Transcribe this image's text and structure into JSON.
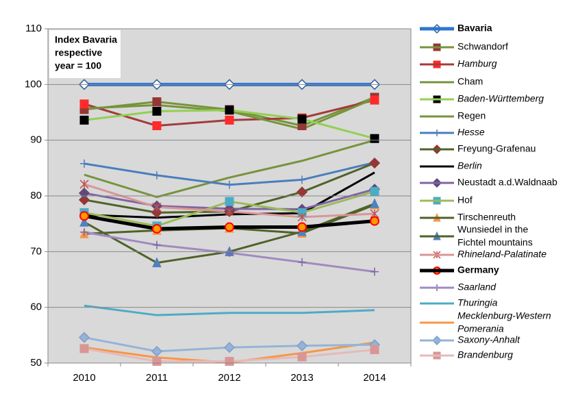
{
  "chart_data": {
    "type": "line",
    "annotation": [
      "Index Bavaria",
      "respective",
      "year = 100"
    ],
    "categories": [
      "2010",
      "2011",
      "2012",
      "2013",
      "2014"
    ],
    "ylim": [
      50,
      110
    ],
    "yticks": [
      50,
      60,
      70,
      80,
      90,
      100,
      110
    ],
    "plot_background": "#d9d9d9",
    "series": [
      {
        "name": "Bavaria",
        "color": "#2e75d0",
        "width": 5,
        "marker": "diamond",
        "marker_color": "#ffffff",
        "marker_stroke": "#2e5f9e",
        "label_style": "bold",
        "values": [
          100,
          100,
          100,
          100,
          100
        ]
      },
      {
        "name": "Schwandorf",
        "color": "#77933c",
        "width": 3,
        "marker": "square",
        "marker_color": "#953735",
        "label_style": "normal",
        "values": [
          95.5,
          96.9,
          95.5,
          92.6,
          97.7
        ]
      },
      {
        "name": "Hamburg",
        "color": "#a53a3a",
        "width": 3,
        "marker": "square",
        "marker_color": "#ff2a2a",
        "label_style": "italic",
        "values": [
          96.5,
          92.6,
          93.6,
          94.0,
          97.2
        ]
      },
      {
        "name": "Cham",
        "color": "#77933c",
        "width": 3,
        "marker": "none",
        "marker_color": "#77933c",
        "label_style": "normal",
        "values": [
          95.7,
          96.3,
          95.2,
          92.0,
          97.5
        ]
      },
      {
        "name": "Baden-Württemberg",
        "color": "#92d050",
        "width": 3,
        "marker": "square",
        "marker_color": "#000000",
        "label_style": "italic",
        "values": [
          93.6,
          95.2,
          95.4,
          93.8,
          90.3
        ]
      },
      {
        "name": "Regen",
        "color": "#77933c",
        "width": 3,
        "marker": "none",
        "marker_color": "#77933c",
        "label_style": "normal",
        "values": [
          83.8,
          79.8,
          83.3,
          86.3,
          90.0
        ]
      },
      {
        "name": "Hesse",
        "color": "#4a7ebb",
        "width": 3,
        "marker": "plus",
        "marker_color": "#4a7ebb",
        "label_style": "italic",
        "values": [
          85.8,
          83.7,
          82.0,
          82.9,
          86.0
        ]
      },
      {
        "name": "Freyung-Grafenau",
        "color": "#4f6228",
        "width": 3,
        "marker": "diamond",
        "marker_color": "#953735",
        "marker_stroke": "#953735",
        "label_style": "normal",
        "values": [
          79.3,
          77.0,
          77.2,
          80.7,
          85.9
        ]
      },
      {
        "name": "Berlin",
        "color": "#000000",
        "width": 3,
        "marker": "none",
        "marker_color": "#000000",
        "label_style": "italic",
        "values": [
          76.6,
          76.1,
          76.7,
          76.9,
          84.2
        ]
      },
      {
        "name": "Neustadt a.d.Waldnaab",
        "color": "#8064a2",
        "width": 3,
        "marker": "diamond",
        "marker_color": "#604a7b",
        "marker_stroke": "#604a7b",
        "label_style": "normal",
        "values": [
          80.5,
          78.2,
          77.7,
          77.6,
          81.2
        ]
      },
      {
        "name": "Hof",
        "color": "#9bbb59",
        "width": 3,
        "marker": "square",
        "marker_color": "#4bacc6",
        "label_style": "normal",
        "values": [
          77.0,
          74.6,
          79.0,
          77.0,
          80.8
        ]
      },
      {
        "name": "Tirschenreuth",
        "color": "#4f6228",
        "width": 3,
        "marker": "triangle",
        "marker_color": "#f79646",
        "label_style": "normal",
        "values": [
          73.2,
          73.8,
          74.2,
          73.3,
          78.4
        ]
      },
      {
        "name": "Wunsiedel in the Fichtel mountains",
        "color": "#4f6228",
        "width": 3,
        "marker": "triangle",
        "marker_color": "#4f81bd",
        "label_style": "normal",
        "values": [
          75.3,
          68.0,
          70.0,
          73.6,
          78.6
        ]
      },
      {
        "name": "Rhineland-Palatinate",
        "color": "#d99694",
        "width": 3,
        "marker": "star",
        "marker_color": "#c0504d",
        "label_style": "italic",
        "values": [
          82.1,
          78.0,
          77.2,
          76.2,
          76.8
        ]
      },
      {
        "name": "Germany",
        "color": "#000000",
        "width": 5,
        "marker": "circle",
        "marker_color": "#ff9900",
        "marker_stroke": "#ff0000",
        "label_style": "bold",
        "values": [
          76.4,
          74.1,
          74.4,
          74.4,
          75.5
        ]
      },
      {
        "name": "Saarland",
        "color": "#a08ac0",
        "width": 3,
        "marker": "plus",
        "marker_color": "#8064a2",
        "label_style": "italic",
        "values": [
          73.5,
          71.2,
          69.8,
          68.1,
          66.4
        ]
      },
      {
        "name": "Thuringia",
        "color": "#4bacc6",
        "width": 3,
        "marker": "none",
        "marker_color": "#4bacc6",
        "label_style": "italic",
        "values": [
          60.3,
          58.6,
          59.0,
          59.0,
          59.5
        ]
      },
      {
        "name": "Mecklenburg-Western Pomerania",
        "color": "#f79646",
        "width": 3,
        "marker": "none",
        "marker_color": "#f79646",
        "label_style": "italic",
        "values": [
          52.8,
          51.0,
          50.1,
          51.8,
          53.7
        ]
      },
      {
        "name": "Saxony-Anhalt",
        "color": "#95b3d7",
        "width": 3,
        "marker": "diamond",
        "marker_color": "#95b3d7",
        "marker_stroke": "#7f9fc6",
        "label_style": "italic",
        "values": [
          54.6,
          52.1,
          52.8,
          53.1,
          53.3
        ]
      },
      {
        "name": "Brandenburg",
        "color": "#e6b9b8",
        "width": 3,
        "marker": "square",
        "marker_color": "#d99694",
        "label_style": "italic",
        "values": [
          52.6,
          50.3,
          50.3,
          51.1,
          52.4
        ]
      }
    ]
  }
}
